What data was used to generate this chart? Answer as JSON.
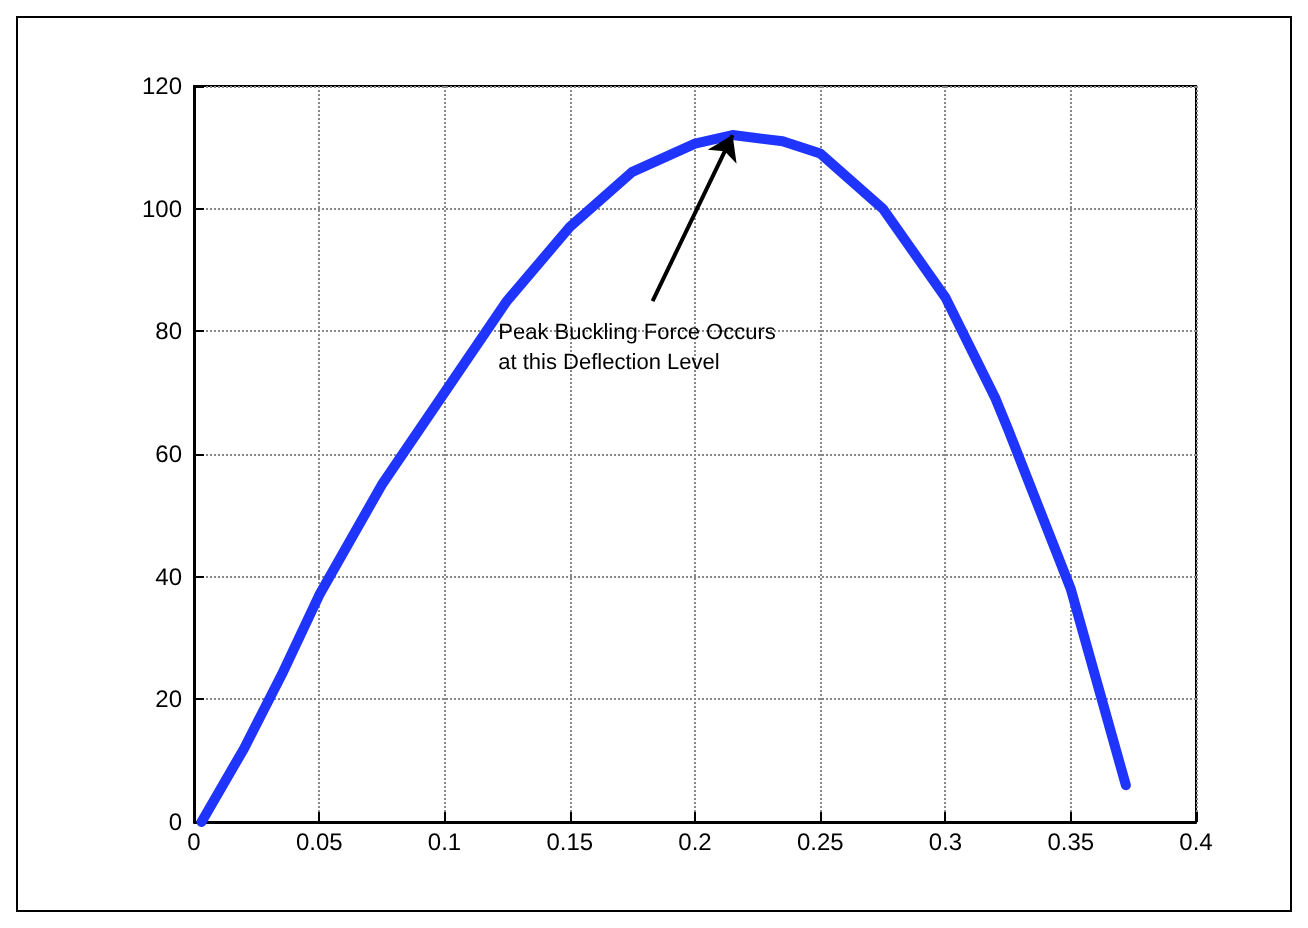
{
  "chart_data": {
    "type": "line",
    "x": [
      0.003,
      0.02,
      0.035,
      0.05,
      0.075,
      0.1,
      0.125,
      0.15,
      0.175,
      0.2,
      0.215,
      0.235,
      0.25,
      0.275,
      0.3,
      0.32,
      0.325,
      0.35,
      0.372
    ],
    "series": [
      {
        "color": "#1f35ff",
        "values": [
          0,
          12,
          24,
          37,
          55,
          70,
          85,
          97,
          106,
          110.6,
          112,
          111,
          109,
          100,
          85.5,
          69,
          64,
          38,
          6
        ]
      }
    ],
    "xlim": [
      0,
      0.4
    ],
    "xticks": [
      0,
      0.05,
      0.1,
      0.15,
      0.2,
      0.25,
      0.3,
      0.35,
      0.4
    ],
    "ylim": [
      0,
      120
    ],
    "yticks": [
      0,
      20,
      40,
      60,
      80,
      100,
      120
    ],
    "grid": true,
    "marker": "none",
    "line_style": "solid",
    "annotations": [
      {
        "text": "Peak Buckling Force Occurs at this Deflection Level",
        "x": 0.215,
        "y": 112
      }
    ]
  }
}
